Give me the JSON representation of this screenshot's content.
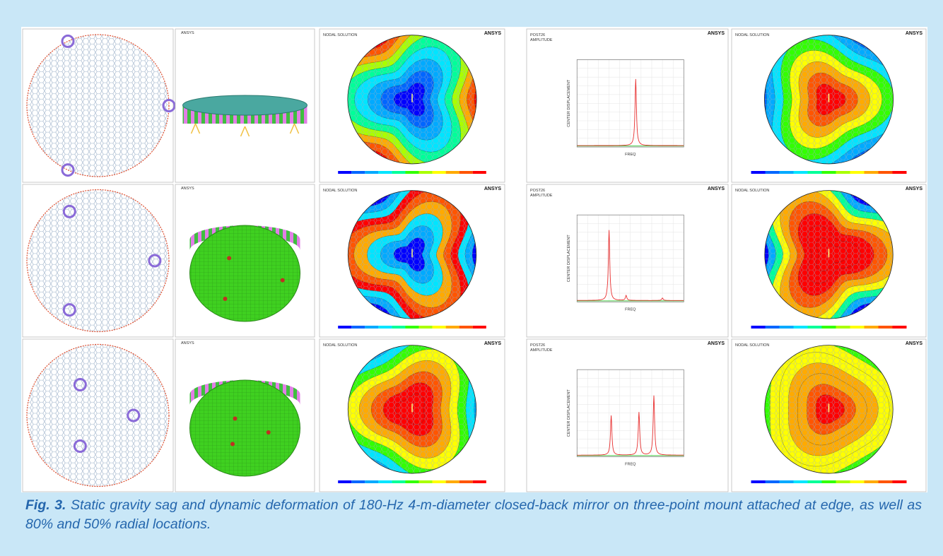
{
  "panel_text": {
    "ansys": "ANSYS",
    "nodal_solution": "NODAL SOLUTION",
    "post26": "POST26",
    "amplitude": "AMPLITUDE",
    "y_axis": "CENTER DISPLACEMENT",
    "x_axis": "FREQ"
  },
  "caption": {
    "label": "Fig. 3.",
    "text": "Static gravity sag and dynamic deformation of 180-Hz 4-m-diameter closed-back mirror on three-point mount attached at edge, as well as 80% and 50% radial locations."
  }
}
